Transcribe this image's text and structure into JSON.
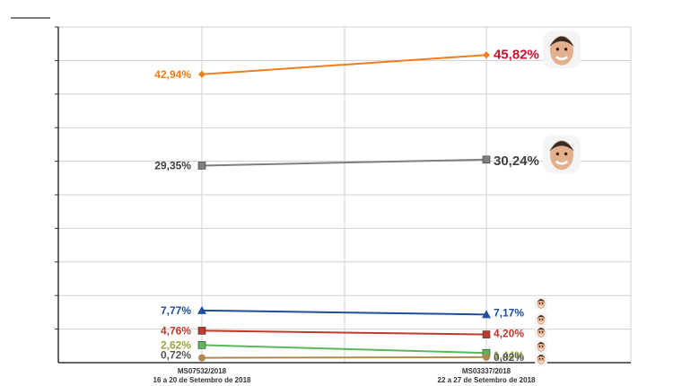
{
  "chart_data": {
    "type": "line",
    "categories": [
      {
        "line1": "MS07532/2018",
        "line2": "16 a 20 de Setembro de 2018"
      },
      {
        "line1": "MS03337/2018",
        "line2": "22 a 27 de Setembro de 2018"
      }
    ],
    "ylim": [
      0,
      50
    ],
    "grid": true,
    "legend": "none",
    "series": [
      {
        "id": "orange",
        "color": "#f07d1c",
        "label_color_end": "#c8102e",
        "marker": "diamond",
        "values": [
          42.94,
          45.82
        ],
        "labels": [
          "42,94%",
          "45,82%"
        ],
        "end_emphasis": true,
        "photo": "large"
      },
      {
        "id": "gray",
        "color": "#7f7f7f",
        "label_color_end": "#404040",
        "marker": "square",
        "values": [
          29.35,
          30.24
        ],
        "labels": [
          "29,35%",
          "30,24%"
        ],
        "end_emphasis": true,
        "photo": "large"
      },
      {
        "id": "blue",
        "color": "#1f4e9c",
        "label_color_end": "#1f4e9c",
        "marker": "triangle",
        "values": [
          7.77,
          7.17
        ],
        "labels": [
          "7,77%",
          "7,17%"
        ],
        "end_emphasis": false,
        "photo": "small"
      },
      {
        "id": "red",
        "color": "#c0392b",
        "label_color_end": "#c0392b",
        "marker": "square",
        "values": [
          4.76,
          4.2
        ],
        "labels": [
          "4,76%",
          "4,20%"
        ],
        "end_emphasis": false,
        "photo": "small"
      },
      {
        "id": "green",
        "color": "#5cb85c",
        "label_color_end": "#9aa23a",
        "marker": "square",
        "values": [
          2.62,
          1.44
        ],
        "labels": [
          "2,62%",
          "1,44%"
        ],
        "end_emphasis": false,
        "photo": "small"
      },
      {
        "id": "tan",
        "color": "#b08a4a",
        "label_color_end": "#555555",
        "marker": "circle",
        "values": [
          0.72,
          0.82
        ],
        "labels": [
          "0,72%",
          "0,82%"
        ],
        "end_emphasis": false,
        "photo": "small"
      }
    ]
  },
  "colors": {
    "grid": "#cfcfcf",
    "axis": "#333333",
    "start_orange_label": "#f07d1c"
  },
  "icons": {
    "candidate_photo": "person-portrait-icon"
  }
}
